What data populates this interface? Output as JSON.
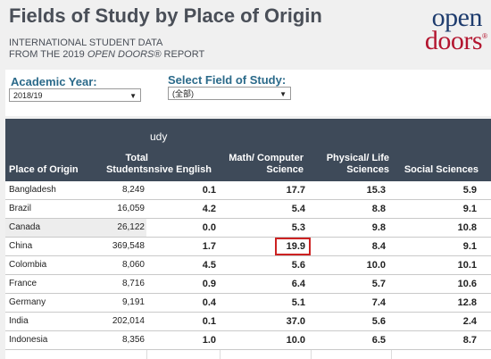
{
  "header": {
    "title": "Fields of Study by Place of Origin",
    "subtitle_line1": "INTERNATIONAL STUDENT DATA",
    "subtitle_line2_prefix": "FROM THE 2019 ",
    "subtitle_line2_italic": "OPEN DOORS®",
    "subtitle_line2_suffix": " REPORT"
  },
  "logo": {
    "line1": "open",
    "line2": "doors",
    "registered": "®"
  },
  "filters": {
    "year_label": "Academic Year:",
    "year_value": "2018/19",
    "field_label": "Select Field of Study:",
    "field_value": "(全部)"
  },
  "table": {
    "header_overflow_text": "udy",
    "columns": [
      "Place of Origin",
      "Total Students",
      "nsive English",
      "Math/ Computer Science",
      "Physical/ Life Sciences",
      "Social Sciences"
    ],
    "rows": [
      {
        "place": "Bangladesh",
        "total": "8,249",
        "english": "0.1",
        "math": "17.7",
        "physical": "15.3",
        "social": "5.9"
      },
      {
        "place": "Brazil",
        "total": "16,059",
        "english": "4.2",
        "math": "5.4",
        "physical": "8.8",
        "social": "9.1"
      },
      {
        "place": "Canada",
        "total": "26,122",
        "english": "0.0",
        "math": "5.3",
        "physical": "9.8",
        "social": "10.8"
      },
      {
        "place": "China",
        "total": "369,548",
        "english": "1.7",
        "math": "19.9",
        "physical": "8.4",
        "social": "9.1"
      },
      {
        "place": "Colombia",
        "total": "8,060",
        "english": "4.5",
        "math": "5.6",
        "physical": "10.0",
        "social": "10.1"
      },
      {
        "place": "France",
        "total": "8,716",
        "english": "0.9",
        "math": "6.4",
        "physical": "5.7",
        "social": "10.6"
      },
      {
        "place": "Germany",
        "total": "9,191",
        "english": "0.4",
        "math": "5.1",
        "physical": "7.4",
        "social": "12.8"
      },
      {
        "place": "India",
        "total": "202,014",
        "english": "0.1",
        "math": "37.0",
        "physical": "5.6",
        "social": "2.4"
      },
      {
        "place": "Indonesia",
        "total": "8,356",
        "english": "1.0",
        "math": "10.0",
        "physical": "6.5",
        "social": "8.7"
      }
    ]
  },
  "colors": {
    "header_bg": "#3e4a59",
    "highlight": "#cc2222",
    "brand_blue": "#1e3c6e",
    "brand_red": "#b3152f"
  }
}
